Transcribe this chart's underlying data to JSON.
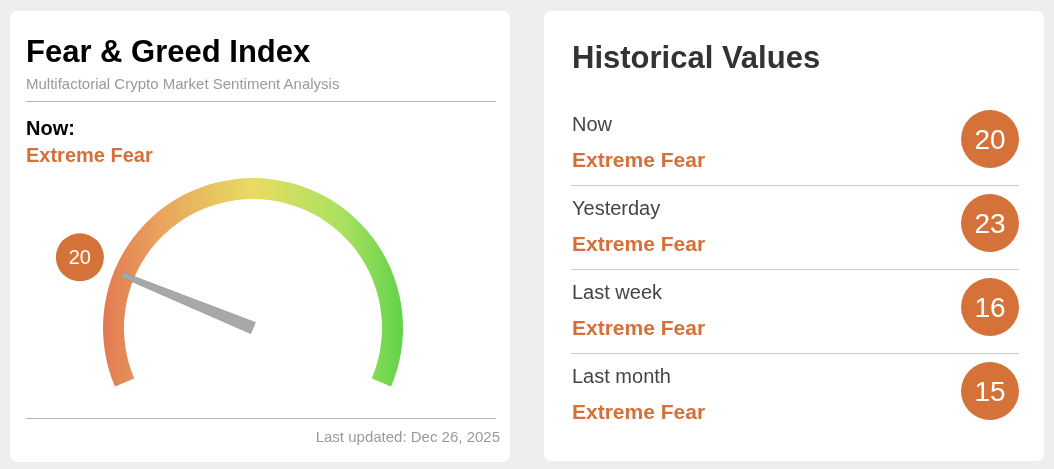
{
  "chart_data": [
    {
      "type": "other",
      "title": "Fear & Greed Index",
      "subtitle": "Multifactorial Crypto Market Sentiment Analysis",
      "values": [
        20
      ],
      "color": "#d4723a",
      "data_labels": true,
      "annotations": [
        "Now:",
        "Extreme Fear",
        "Last updated: Dec 26, 2025"
      ]
    },
    {
      "type": "other",
      "title": "Historical Values",
      "categories": [
        "Now",
        "Yesterday",
        "Last week",
        "Last month"
      ],
      "values": [
        20,
        23,
        16,
        15
      ],
      "color": "#d4723a",
      "data_labels": true,
      "annotations": [
        "Extreme Fear",
        "Extreme Fear",
        "Extreme Fear",
        "Extreme Fear"
      ]
    }
  ]
}
